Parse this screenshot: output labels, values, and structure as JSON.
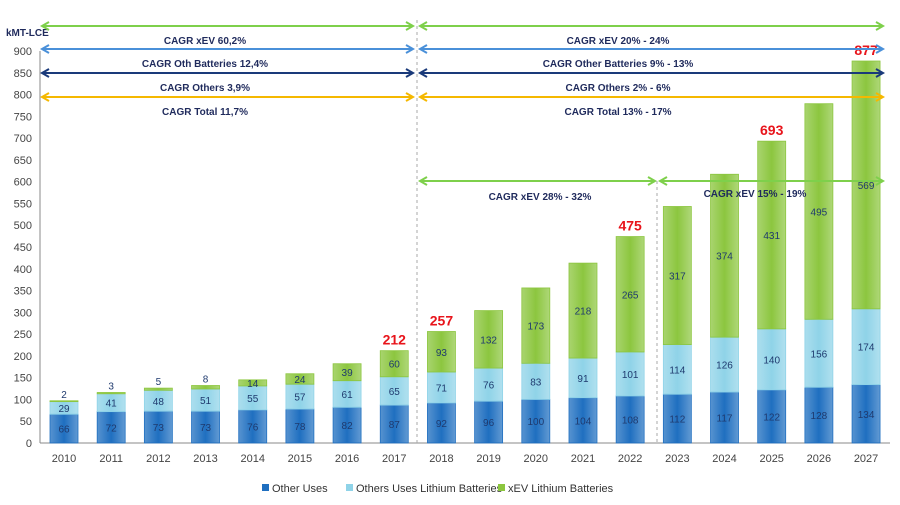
{
  "chart_data": {
    "type": "bar",
    "stacked": true,
    "ylabel": "kMT-LCE",
    "ylim": [
      0,
      900
    ],
    "yticks": [
      0,
      50,
      100,
      150,
      200,
      250,
      300,
      350,
      400,
      450,
      500,
      550,
      600,
      650,
      700,
      750,
      800,
      850,
      900
    ],
    "categories": [
      "2010",
      "2011",
      "2012",
      "2013",
      "2014",
      "2015",
      "2016",
      "2017",
      "2018",
      "2019",
      "2020",
      "2021",
      "2022",
      "2023",
      "2024",
      "2025",
      "2026",
      "2027"
    ],
    "series": [
      {
        "name": "Other Uses",
        "color": "#1f6fc0",
        "values": [
          66,
          72,
          73,
          73,
          76,
          78,
          82,
          87,
          92,
          96,
          100,
          104,
          108,
          112,
          117,
          122,
          128,
          134
        ]
      },
      {
        "name": "Others Uses Lithium Batteries",
        "color": "#8fd3e8",
        "values": [
          29,
          41,
          48,
          51,
          55,
          57,
          61,
          65,
          71,
          76,
          83,
          91,
          101,
          114,
          126,
          140,
          156,
          174
        ]
      },
      {
        "name": "xEV Lithium Batteries",
        "color": "#8cc63f",
        "values": [
          2,
          3,
          5,
          8,
          14,
          24,
          39,
          60,
          93,
          132,
          173,
          218,
          265,
          317,
          374,
          431,
          495,
          569
        ]
      }
    ],
    "total_labels": [
      {
        "category": "2017",
        "value": "212"
      },
      {
        "category": "2018",
        "value": "257"
      },
      {
        "category": "2022",
        "value": "475"
      },
      {
        "category": "2025",
        "value": "693"
      },
      {
        "category": "2027",
        "value": "877"
      }
    ],
    "legend_position": "bottom",
    "grid": false,
    "annotations": {
      "left": [
        {
          "text": "CAGR xEV 60,2%",
          "color": "#7ed04b"
        },
        {
          "text": "CAGR Oth Batteries 12,4%",
          "color": "#4a90d9"
        },
        {
          "text": "CAGR Others 3,9%",
          "color": "#1a3a7a"
        },
        {
          "text": "CAGR Total 11,7%",
          "color": "#f5b800"
        }
      ],
      "right": [
        {
          "text": "CAGR xEV 20% - 24%",
          "color": "#7ed04b"
        },
        {
          "text": "CAGR Other Batteries 9% - 13%",
          "color": "#4a90d9"
        },
        {
          "text": "CAGR Others 2% - 6%",
          "color": "#1a3a7a"
        },
        {
          "text": "CAGR Total 13% - 17%",
          "color": "#f5b800"
        }
      ],
      "mid1": {
        "text": "CAGR xEV 28% - 32%",
        "color": "#7ed04b"
      },
      "mid2": {
        "text": "CAGR xEV 15% - 19%",
        "color": "#7ed04b"
      }
    }
  }
}
